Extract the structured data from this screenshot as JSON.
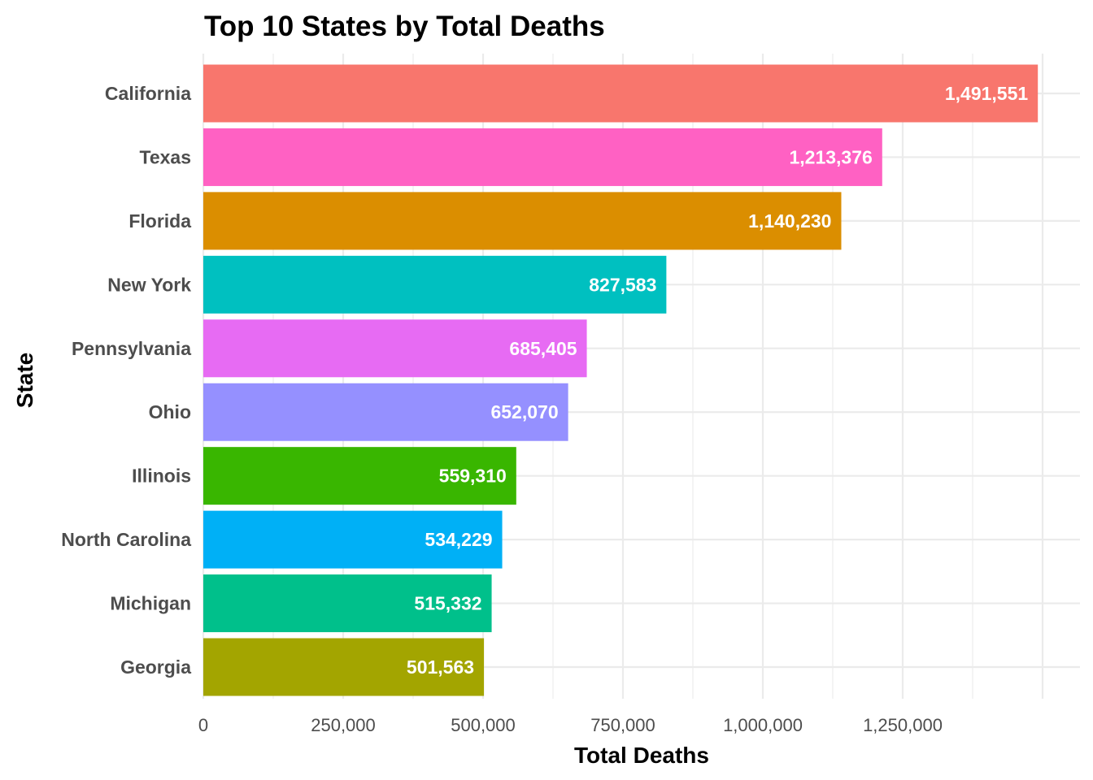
{
  "chart_data": {
    "type": "bar",
    "orientation": "horizontal",
    "title": "Top 10 States by Total Deaths",
    "xlabel": "Total Deaths",
    "ylabel": "State",
    "xlim": [
      0,
      1500000
    ],
    "x_ticks": [
      0,
      250000,
      500000,
      750000,
      1000000,
      1250000
    ],
    "x_tick_labels": [
      "0",
      "250,000",
      "500,000",
      "750,000",
      "1,000,000",
      "1,250,000"
    ],
    "grid": true,
    "legend": "none",
    "categories": [
      "California",
      "Texas",
      "Florida",
      "New York",
      "Pennsylvania",
      "Ohio",
      "Illinois",
      "North Carolina",
      "Michigan",
      "Georgia"
    ],
    "values": [
      1491551,
      1213376,
      1140230,
      827583,
      685405,
      652070,
      559310,
      534229,
      515332,
      501563
    ],
    "value_labels": [
      "1,491,551",
      "1,213,376",
      "1,140,230",
      "827,583",
      "685,405",
      "652,070",
      "559,310",
      "534,229",
      "515,332",
      "501,563"
    ],
    "colors": [
      "#F8766D",
      "#FF61C3",
      "#DB8E00",
      "#00C0C0",
      "#E76BF3",
      "#9590FF",
      "#39B600",
      "#00B0F6",
      "#00C08B",
      "#A3A500"
    ]
  }
}
